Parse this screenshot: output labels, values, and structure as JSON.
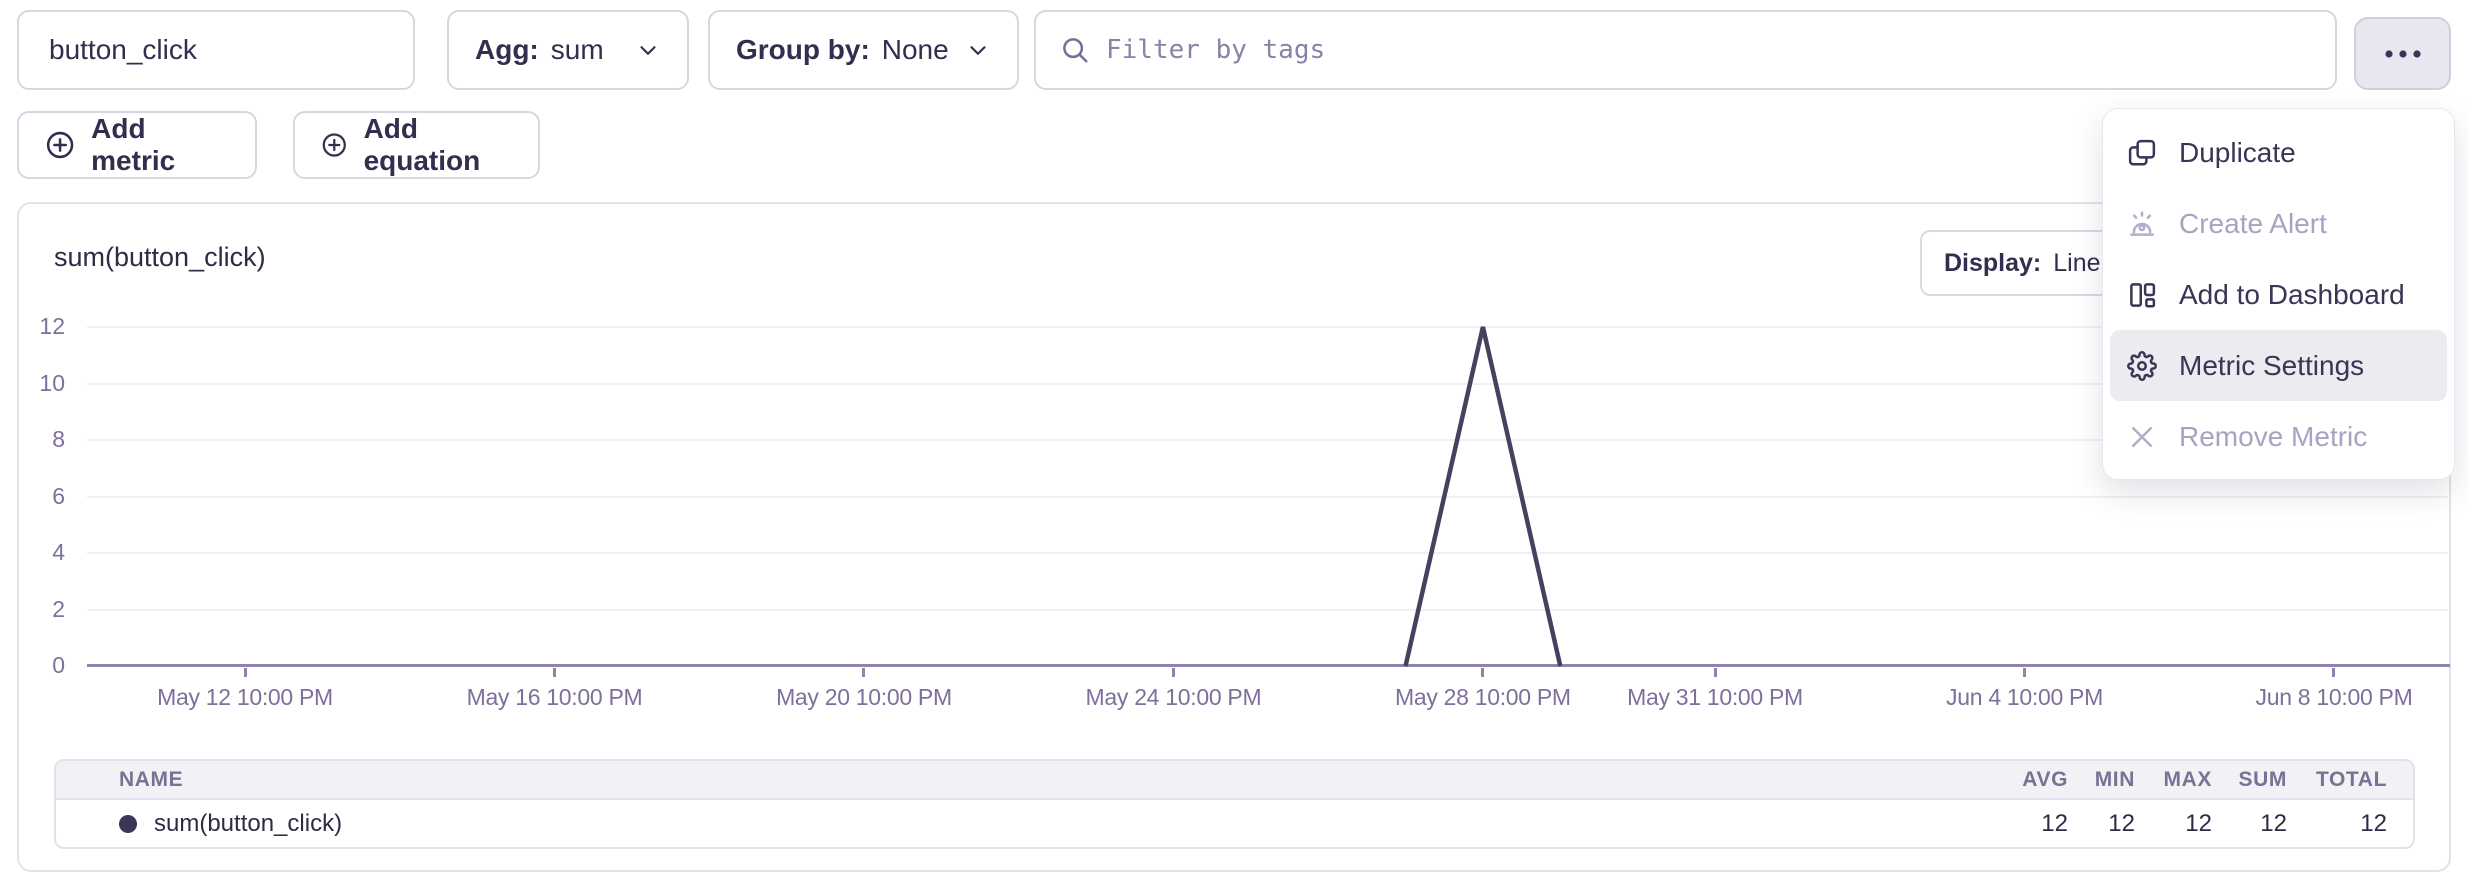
{
  "toolbar": {
    "metric_name": "button_click",
    "agg_label": "Agg:",
    "agg_value": "sum",
    "group_by_label": "Group by:",
    "group_by_value": "None",
    "filter_placeholder": "Filter by tags",
    "add_metric_label": "Add metric",
    "add_equation_label": "Add equation"
  },
  "context_menu": {
    "items": [
      {
        "label": "Duplicate",
        "icon": "duplicate-icon",
        "enabled": true,
        "highlighted": false
      },
      {
        "label": "Create Alert",
        "icon": "alarm-icon",
        "enabled": false,
        "highlighted": false
      },
      {
        "label": "Add to Dashboard",
        "icon": "dashboard-icon",
        "enabled": true,
        "highlighted": false
      },
      {
        "label": "Metric Settings",
        "icon": "gear-icon",
        "enabled": true,
        "highlighted": true
      },
      {
        "label": "Remove Metric",
        "icon": "x-icon",
        "enabled": false,
        "highlighted": false
      }
    ]
  },
  "panel": {
    "title": "sum(button_click)",
    "display_label": "Display:",
    "display_value": "Line"
  },
  "chart_data": {
    "type": "line",
    "title": "sum(button_click)",
    "xlabel": "",
    "ylabel": "",
    "grid": true,
    "legend_position": "none",
    "ylim": [
      0,
      12
    ],
    "y_ticks": [
      0,
      2,
      4,
      6,
      8,
      10,
      12
    ],
    "x_ticks": [
      {
        "label": "May 12 10:00 PM",
        "day": 0
      },
      {
        "label": "May 16 10:00 PM",
        "day": 4
      },
      {
        "label": "May 20 10:00 PM",
        "day": 8
      },
      {
        "label": "May 24 10:00 PM",
        "day": 12
      },
      {
        "label": "May 28 10:00 PM",
        "day": 16
      },
      {
        "label": "May 31 10:00 PM",
        "day": 19
      },
      {
        "label": "Jun 4 10:00 PM",
        "day": 23
      },
      {
        "label": "Jun 8 10:00 PM",
        "day": 27
      }
    ],
    "series": [
      {
        "name": "sum(button_click)",
        "color": "#46415f",
        "points": [
          {
            "x": "May 27 10:00 PM",
            "day": 15,
            "y": 0
          },
          {
            "x": "May 28 10:00 PM",
            "day": 16,
            "y": 12
          },
          {
            "x": "May 29 10:00 PM",
            "day": 17,
            "y": 0
          }
        ]
      }
    ]
  },
  "summary_table": {
    "columns": [
      "NAME",
      "AVG",
      "MIN",
      "MAX",
      "SUM",
      "TOTAL"
    ],
    "rows": [
      {
        "name": "sum(button_click)",
        "avg": "12",
        "min": "12",
        "max": "12",
        "sum": "12",
        "total": "12",
        "dot_color": "#3b3658"
      }
    ]
  },
  "colors": {
    "text": "#332e4e",
    "muted_text": "#7e6f9c",
    "disabled_text": "#aba1c2",
    "border": "#d9d5e3",
    "series_line": "#46415f",
    "axis": "#9183ab",
    "grid": "#f1eff6",
    "menu_highlight": "#ececf0",
    "table_header_bg": "#f2f1f5",
    "more_button_bg": "#e8e6ee"
  }
}
